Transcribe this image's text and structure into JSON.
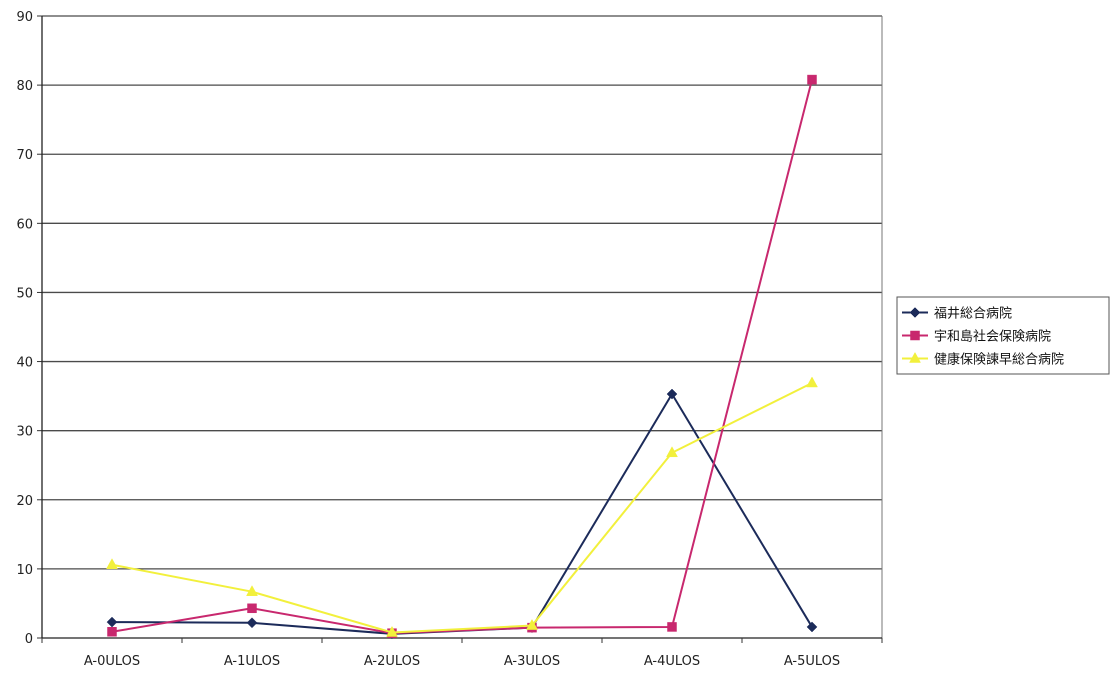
{
  "chart_data": {
    "type": "line",
    "title": "",
    "xlabel": "",
    "ylabel": "",
    "categories": [
      "A-0ULOS",
      "A-1ULOS",
      "A-2ULOS",
      "A-3ULOS",
      "A-4ULOS",
      "A-5ULOS"
    ],
    "ylim": [
      0,
      90
    ],
    "yticks": [
      0,
      10,
      20,
      30,
      40,
      50,
      60,
      70,
      80,
      90
    ],
    "grid": true,
    "legend_position": "right",
    "series": [
      {
        "name": "福井総合病院",
        "color": "#1c2b5a",
        "marker": "diamond",
        "values": [
          2.3,
          2.2,
          0.6,
          1.5,
          35.3,
          1.6
        ]
      },
      {
        "name": "宇和島社会保険病院",
        "color": "#c8286e",
        "marker": "square",
        "values": [
          0.9,
          4.3,
          0.7,
          1.5,
          1.6,
          80.8
        ]
      },
      {
        "name": "健康保険諫早総合病院",
        "color": "#f2f03c",
        "marker": "triangle",
        "values": [
          10.6,
          6.7,
          0.8,
          1.8,
          26.8,
          36.9
        ]
      }
    ]
  }
}
